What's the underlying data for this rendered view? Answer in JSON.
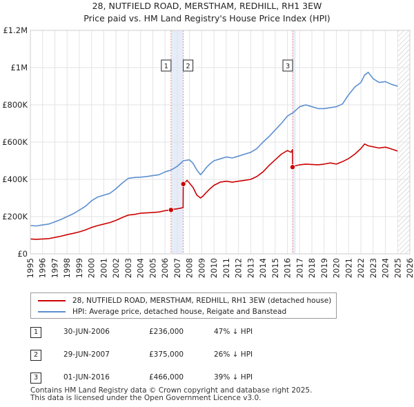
{
  "chart_data": {
    "type": "line",
    "title": "28, NUTFIELD ROAD, MERSTHAM, REDHILL, RH1 3EW",
    "subtitle": "Price paid vs. HM Land Registry's House Price Index (HPI)",
    "xlabel": "",
    "ylabel": "",
    "xlim": [
      1995,
      2026
    ],
    "ylim": [
      0,
      1200000
    ],
    "x_ticks": [
      1995,
      1996,
      1997,
      1998,
      1999,
      2000,
      2001,
      2002,
      2003,
      2004,
      2005,
      2006,
      2007,
      2008,
      2009,
      2010,
      2011,
      2012,
      2013,
      2014,
      2015,
      2016,
      2017,
      2018,
      2019,
      2020,
      2021,
      2022,
      2023,
      2024,
      2025,
      2026
    ],
    "y_ticks": [
      {
        "value": 0,
        "label": "£0"
      },
      {
        "value": 200000,
        "label": "£200K"
      },
      {
        "value": 400000,
        "label": "£400K"
      },
      {
        "value": 600000,
        "label": "£600K"
      },
      {
        "value": 800000,
        "label": "£800K"
      },
      {
        "value": 1000000,
        "label": "£1M"
      },
      {
        "value": 1200000,
        "label": "£1.2M"
      }
    ],
    "grid": true,
    "projection_start": 2025.0,
    "series": [
      {
        "name": "28, NUTFIELD ROAD, MERSTHAM, REDHILL, RH1 3EW (detached house)",
        "color": "#cc0000",
        "x": [
          1995.0,
          1995.5,
          1996.0,
          1996.5,
          1997.0,
          1997.5,
          1998.0,
          1998.5,
          1999.0,
          1999.5,
          2000.0,
          2000.5,
          2001.0,
          2001.5,
          2002.0,
          2002.5,
          2003.0,
          2003.5,
          2004.0,
          2004.5,
          2005.0,
          2005.5,
          2006.0,
          2006.49,
          2006.5,
          2007.0,
          2007.48,
          2007.49,
          2007.6,
          2007.8,
          2008.0,
          2008.3,
          2008.6,
          2008.9,
          2009.1,
          2009.3,
          2009.6,
          2010.0,
          2010.5,
          2011.0,
          2011.5,
          2012.0,
          2012.5,
          2013.0,
          2013.5,
          2014.0,
          2014.5,
          2015.0,
          2015.5,
          2016.0,
          2016.3,
          2016.41,
          2016.42,
          2016.6,
          2017.0,
          2017.5,
          2018.0,
          2018.5,
          2019.0,
          2019.5,
          2020.0,
          2020.5,
          2021.0,
          2021.5,
          2022.0,
          2022.3,
          2022.6,
          2023.0,
          2023.5,
          2024.0,
          2024.5,
          2025.0
        ],
        "values": [
          80000,
          78000,
          80000,
          82000,
          88000,
          95000,
          103000,
          110000,
          118000,
          128000,
          142000,
          152000,
          160000,
          168000,
          180000,
          195000,
          208000,
          212000,
          218000,
          220000,
          222000,
          225000,
          232000,
          236000,
          238000,
          242000,
          248000,
          375000,
          380000,
          395000,
          380000,
          355000,
          315000,
          300000,
          310000,
          325000,
          345000,
          368000,
          385000,
          390000,
          385000,
          390000,
          395000,
          400000,
          415000,
          440000,
          475000,
          505000,
          535000,
          555000,
          545000,
          560000,
          466000,
          472000,
          478000,
          482000,
          480000,
          478000,
          482000,
          488000,
          482000,
          495000,
          512000,
          535000,
          565000,
          590000,
          580000,
          575000,
          568000,
          573000,
          563000,
          552000
        ]
      },
      {
        "name": "HPI: Average price, detached house, Reigate and Banstead",
        "color": "#5b8ed0",
        "x": [
          1995.0,
          1995.5,
          1996.0,
          1996.5,
          1997.0,
          1997.5,
          1998.0,
          1998.5,
          1999.0,
          1999.5,
          2000.0,
          2000.5,
          2001.0,
          2001.5,
          2002.0,
          2002.5,
          2003.0,
          2003.5,
          2004.0,
          2004.5,
          2005.0,
          2005.5,
          2006.0,
          2006.5,
          2007.0,
          2007.5,
          2008.0,
          2008.3,
          2008.6,
          2008.9,
          2009.1,
          2009.4,
          2009.7,
          2010.0,
          2010.5,
          2011.0,
          2011.5,
          2012.0,
          2012.5,
          2013.0,
          2013.5,
          2014.0,
          2014.5,
          2015.0,
          2015.5,
          2016.0,
          2016.5,
          2017.0,
          2017.5,
          2018.0,
          2018.5,
          2019.0,
          2019.5,
          2020.0,
          2020.5,
          2021.0,
          2021.5,
          2022.0,
          2022.3,
          2022.6,
          2023.0,
          2023.5,
          2024.0,
          2024.5,
          2025.0
        ],
        "values": [
          152000,
          150000,
          155000,
          160000,
          172000,
          185000,
          200000,
          215000,
          235000,
          255000,
          285000,
          305000,
          315000,
          325000,
          350000,
          380000,
          405000,
          410000,
          412000,
          415000,
          420000,
          425000,
          440000,
          450000,
          470000,
          500000,
          505000,
          485000,
          450000,
          425000,
          440000,
          465000,
          485000,
          500000,
          510000,
          520000,
          515000,
          525000,
          535000,
          545000,
          565000,
          600000,
          630000,
          665000,
          700000,
          740000,
          760000,
          790000,
          800000,
          790000,
          780000,
          780000,
          785000,
          790000,
          805000,
          855000,
          895000,
          920000,
          960000,
          975000,
          940000,
          920000,
          925000,
          910000,
          900000
        ]
      }
    ],
    "sales": [
      {
        "id": "1",
        "date": "30-JUN-2006",
        "x": 2006.49,
        "price": 236000,
        "price_label": "£236,000",
        "hpi_label": "47% ↓ HPI"
      },
      {
        "id": "2",
        "date": "29-JUN-2007",
        "x": 2007.49,
        "price": 375000,
        "price_label": "£375,000",
        "hpi_label": "26% ↓ HPI"
      },
      {
        "id": "3",
        "date": "01-JUN-2016",
        "x": 2016.42,
        "price": 466000,
        "price_label": "£466,000",
        "hpi_label": "39% ↓ HPI"
      }
    ]
  },
  "footer": {
    "line1": "Contains HM Land Registry data © Crown copyright and database right 2025.",
    "line2": "This data is licensed under the Open Government Licence v3.0."
  },
  "colors": {
    "property": "#cc0000",
    "hpi": "#5b8ed0",
    "sale_marker_line": "#ee8888",
    "sale_band": "#e6ecf8"
  }
}
